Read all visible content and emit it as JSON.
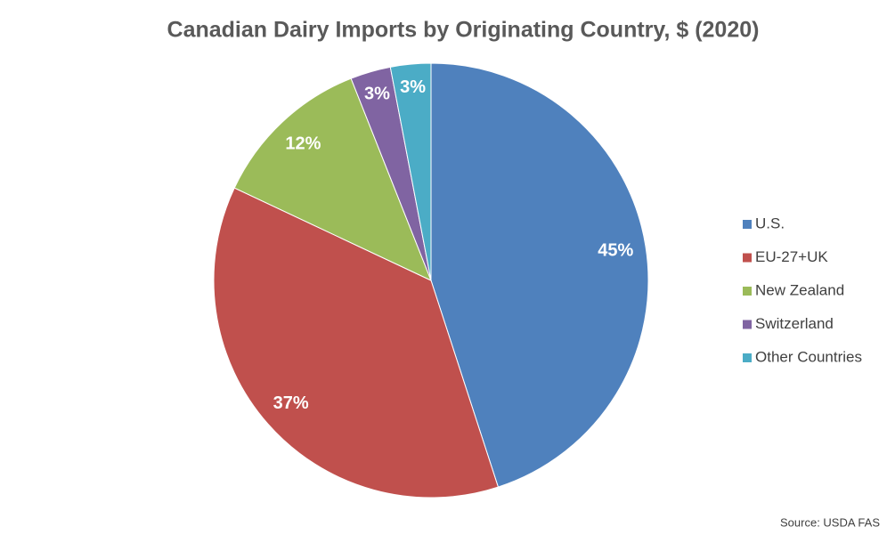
{
  "chart_data": {
    "type": "pie",
    "title": "Canadian Dairy Imports by Originating Country, $ (2020)",
    "categories": [
      "U.S.",
      "EU-27+UK",
      "New Zealand",
      "Switzerland",
      "Other Countries"
    ],
    "values": [
      45,
      37,
      12,
      3,
      3
    ],
    "value_labels": [
      "45%",
      "37%",
      "12%",
      "3%",
      "3%"
    ],
    "colors": [
      "#4f81bd",
      "#c0504d",
      "#9bbb59",
      "#8064a2",
      "#4bacc6"
    ],
    "legend": "right",
    "source": "Source: USDA FAS"
  }
}
